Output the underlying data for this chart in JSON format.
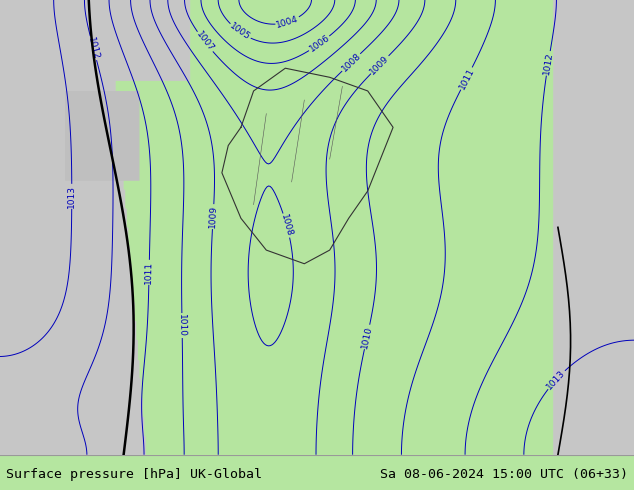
{
  "title_left": "Surface pressure [hPa] UK-Global",
  "title_right": "Sa 08-06-2024 15:00 UTC (06+33)",
  "land_color_green": [
    0.71,
    0.9,
    0.627
  ],
  "land_color_grey": [
    0.78,
    0.78,
    0.78
  ],
  "sea_color": [
    0.82,
    0.82,
    0.82
  ],
  "contour_color_blue": "#0000bb",
  "contour_color_red": "#cc0000",
  "contour_color_black": "#000000",
  "border_color_thick": "#000000",
  "border_color_thin": "#808080",
  "figsize": [
    6.34,
    4.9
  ],
  "dpi": 100,
  "font_size_title": 9.5,
  "bottom_bar_height": 0.072
}
